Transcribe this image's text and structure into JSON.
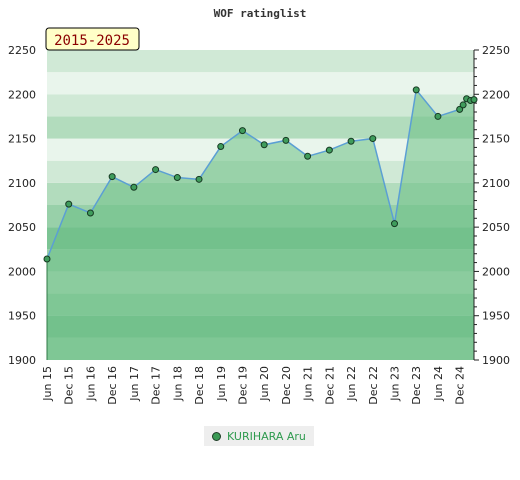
{
  "colors": {
    "line": "#5b9fd4",
    "area": "#6cbf85",
    "marker_fill": "#3f9c5c",
    "marker_stroke": "#163a22",
    "badge_bg": "#ffffc8",
    "badge_text": "#8b0000",
    "legend_text": "#2e9a4e",
    "bands": [
      "#98d0a9",
      "#7cc494",
      "#98d0a9",
      "#b2dcbd",
      "#98d0a9",
      "#7cc494",
      "#98d0a9",
      "#b2dcbd",
      "#d0e9d6",
      "#e9f5ec",
      "#b2dcbd",
      "#d0e9d6",
      "#e9f5ec",
      "#d0e9d6"
    ]
  },
  "chart_data": {
    "type": "line",
    "title": "WOF ratinglist",
    "period_badge": "2015-2025",
    "ylim": [
      1900,
      2250
    ],
    "yticks": [
      1900,
      1950,
      2000,
      2050,
      2100,
      2150,
      2200,
      2250
    ],
    "xlim": [
      2015.42,
      2025.25
    ],
    "xticks": [
      {
        "label": "Jun 15",
        "t": 2015.42
      },
      {
        "label": "Dec 15",
        "t": 2015.92
      },
      {
        "label": "Jun 16",
        "t": 2016.42
      },
      {
        "label": "Dec 16",
        "t": 2016.92
      },
      {
        "label": "Jun 17",
        "t": 2017.42
      },
      {
        "label": "Dec 17",
        "t": 2017.92
      },
      {
        "label": "Jun 18",
        "t": 2018.42
      },
      {
        "label": "Dec 18",
        "t": 2018.92
      },
      {
        "label": "Jun 19",
        "t": 2019.42
      },
      {
        "label": "Dec 19",
        "t": 2019.92
      },
      {
        "label": "Jun 20",
        "t": 2020.42
      },
      {
        "label": "Dec 20",
        "t": 2020.92
      },
      {
        "label": "Jun 21",
        "t": 2021.42
      },
      {
        "label": "Dec 21",
        "t": 2021.92
      },
      {
        "label": "Jun 22",
        "t": 2022.42
      },
      {
        "label": "Dec 22",
        "t": 2022.92
      },
      {
        "label": "Jun 23",
        "t": 2023.42
      },
      {
        "label": "Dec 23",
        "t": 2023.92
      },
      {
        "label": "Jun 24",
        "t": 2024.42
      },
      {
        "label": "Dec 24",
        "t": 2024.92
      }
    ],
    "series": [
      {
        "name": "KURIHARA Aru",
        "x": [
          2015.42,
          2015.92,
          2016.42,
          2016.92,
          2017.42,
          2017.92,
          2018.42,
          2018.92,
          2019.42,
          2019.92,
          2020.42,
          2020.92,
          2021.42,
          2021.92,
          2022.42,
          2022.92,
          2023.42,
          2023.92,
          2024.42,
          2024.92,
          2025.0,
          2025.08,
          2025.17,
          2025.25
        ],
        "values": [
          2014,
          2076,
          2066,
          2107,
          2095,
          2115,
          2106,
          2104,
          2141,
          2159,
          2143,
          2148,
          2130,
          2137,
          2147,
          2150,
          2054,
          2205,
          2175,
          2183,
          2188,
          2195,
          2193,
          2194
        ]
      }
    ]
  }
}
